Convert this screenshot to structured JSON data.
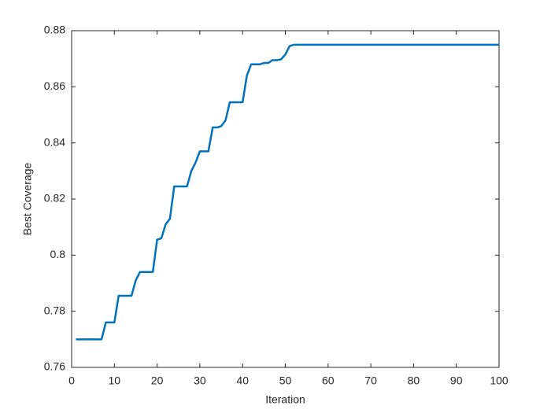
{
  "chart_data": {
    "type": "line",
    "xlabel": "Iteration",
    "ylabel": "Best Coverage",
    "x": [
      1,
      2,
      3,
      4,
      5,
      6,
      7,
      8,
      9,
      10,
      11,
      12,
      13,
      14,
      15,
      16,
      17,
      18,
      19,
      20,
      21,
      22,
      23,
      24,
      25,
      26,
      27,
      28,
      29,
      30,
      31,
      32,
      33,
      34,
      35,
      36,
      37,
      38,
      39,
      40,
      41,
      42,
      43,
      44,
      45,
      46,
      47,
      48,
      49,
      50,
      51,
      52,
      53,
      54,
      55,
      56,
      57,
      58,
      59,
      60,
      61,
      62,
      63,
      64,
      65,
      66,
      67,
      68,
      69,
      70,
      71,
      72,
      73,
      74,
      75,
      76,
      77,
      78,
      79,
      80,
      81,
      82,
      83,
      84,
      85,
      86,
      87,
      88,
      89,
      90,
      91,
      92,
      93,
      94,
      95,
      96,
      97,
      98,
      99,
      100
    ],
    "values": [
      0.77,
      0.77,
      0.77,
      0.77,
      0.77,
      0.77,
      0.77,
      0.776,
      0.776,
      0.776,
      0.7855,
      0.7855,
      0.7855,
      0.7855,
      0.791,
      0.794,
      0.794,
      0.794,
      0.794,
      0.8055,
      0.806,
      0.811,
      0.813,
      0.8245,
      0.8245,
      0.8245,
      0.8245,
      0.83,
      0.833,
      0.837,
      0.837,
      0.837,
      0.8455,
      0.8455,
      0.846,
      0.848,
      0.8545,
      0.8545,
      0.8545,
      0.8545,
      0.864,
      0.868,
      0.868,
      0.868,
      0.8685,
      0.8685,
      0.8695,
      0.8695,
      0.8698,
      0.8715,
      0.8745,
      0.875,
      0.875,
      0.875,
      0.875,
      0.875,
      0.875,
      0.875,
      0.875,
      0.875,
      0.875,
      0.875,
      0.875,
      0.875,
      0.875,
      0.875,
      0.875,
      0.875,
      0.875,
      0.875,
      0.875,
      0.875,
      0.875,
      0.875,
      0.875,
      0.875,
      0.875,
      0.875,
      0.875,
      0.875,
      0.875,
      0.875,
      0.875,
      0.875,
      0.875,
      0.875,
      0.875,
      0.875,
      0.875,
      0.875,
      0.875,
      0.875,
      0.875,
      0.875,
      0.875,
      0.875,
      0.875,
      0.875,
      0.875,
      0.875
    ],
    "color": "#0072bd",
    "xlim": [
      0,
      100
    ],
    "xticks": [
      0,
      10,
      20,
      30,
      40,
      50,
      60,
      70,
      80,
      90,
      100
    ],
    "ylim": [
      0.76,
      0.88
    ],
    "yticks": [
      0.76,
      0.78,
      0.8,
      0.82,
      0.84,
      0.86,
      0.88
    ],
    "grid": false
  }
}
